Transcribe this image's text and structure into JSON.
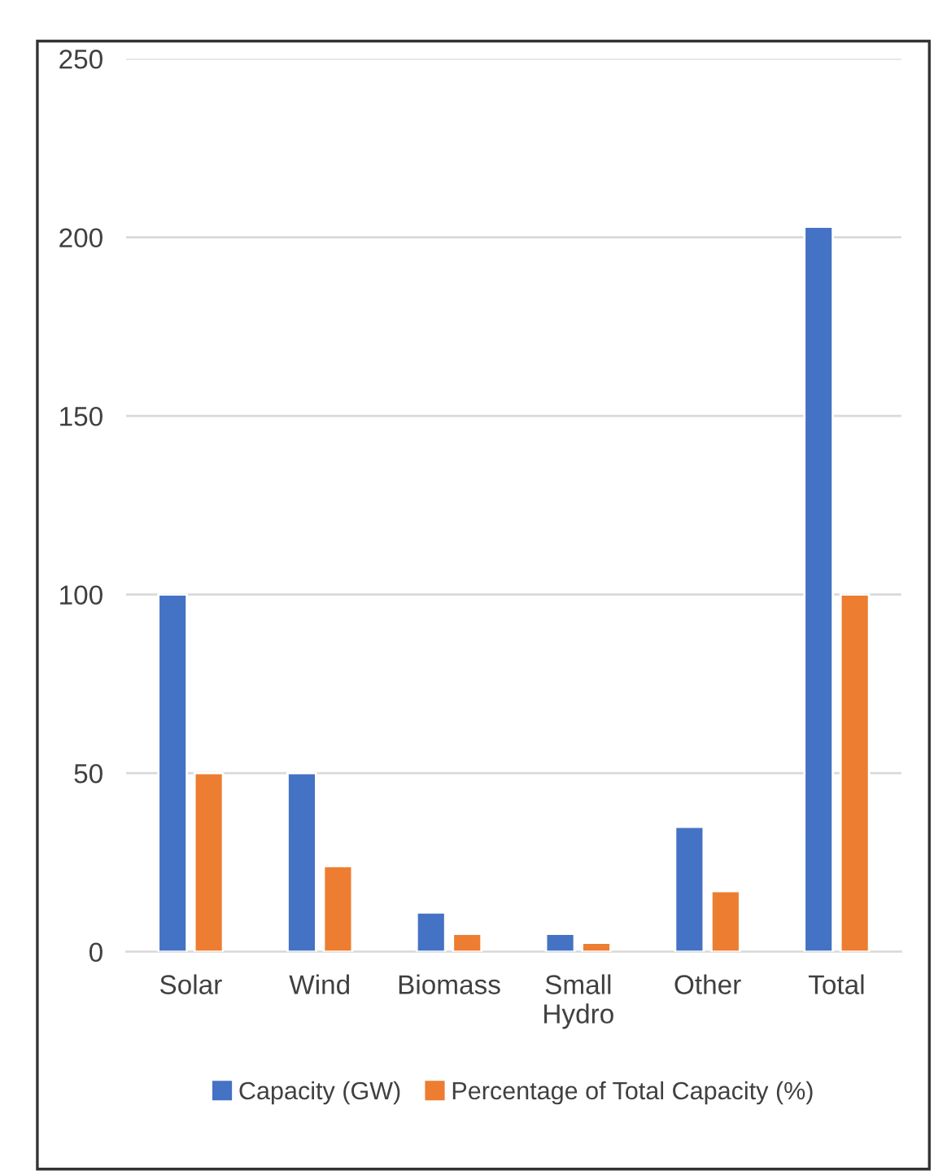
{
  "chart_data": {
    "type": "bar",
    "categories": [
      "Solar",
      "Wind",
      "Biomass",
      "Small\nHydro",
      "Other",
      "Total"
    ],
    "series": [
      {
        "name": "Capacity (GW)",
        "color": "#4472c4",
        "values": [
          100,
          50,
          11,
          5,
          35,
          203
        ]
      },
      {
        "name": "Percentage of Total Capacity (%)",
        "color": "#ed7d31",
        "values": [
          50,
          24,
          5,
          2.5,
          17,
          100
        ]
      }
    ],
    "ylim": [
      0,
      250
    ],
    "yticks": [
      0,
      50,
      100,
      150,
      200,
      250
    ],
    "grid": "y",
    "legend": "bottom"
  }
}
